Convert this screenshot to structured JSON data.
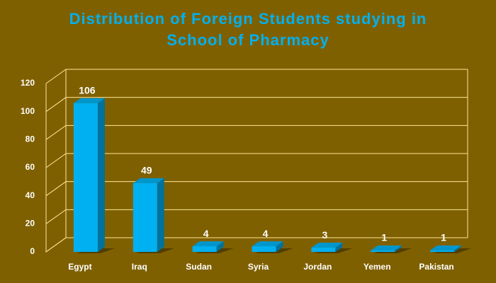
{
  "chart_data": {
    "type": "bar",
    "title": "Distribution of Foreign Students studying in School of Pharmacy",
    "categories": [
      "Egypt",
      "Iraq",
      "Sudan",
      "Syria",
      "Jordan",
      "Yemen",
      "Pakistan"
    ],
    "values": [
      106,
      49,
      4,
      4,
      3,
      1,
      1
    ],
    "color": "#00b0f0",
    "ylim": [
      0,
      120
    ],
    "yticks": [
      0,
      20,
      40,
      60,
      80,
      100,
      120
    ],
    "grid": true
  }
}
